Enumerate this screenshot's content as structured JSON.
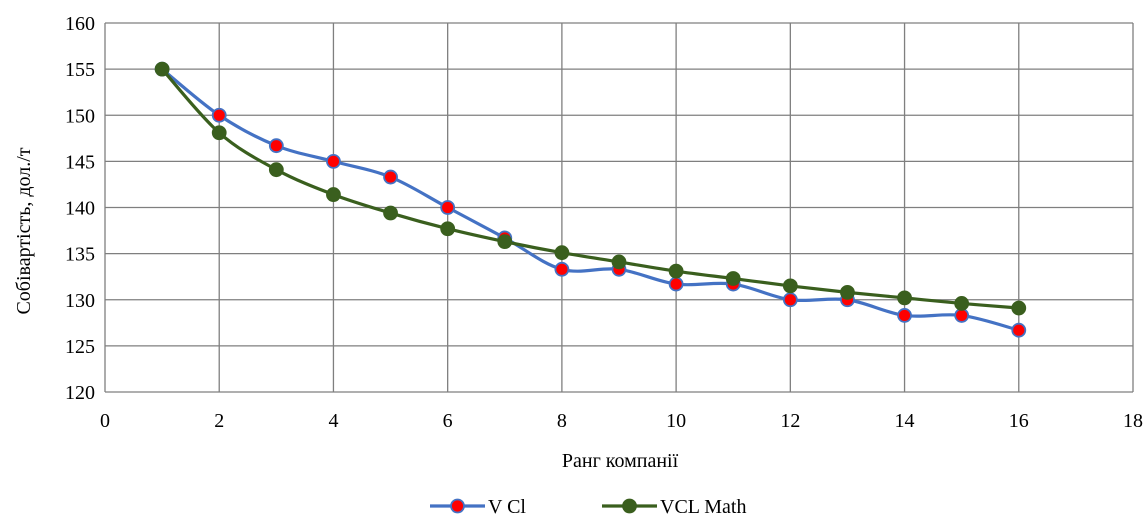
{
  "chart_data": {
    "type": "line",
    "title": "",
    "xlabel": "Ранг компанії",
    "ylabel": "Собівартість, дол./т",
    "xlim": [
      0,
      18
    ],
    "ylim": [
      120,
      160
    ],
    "xticks": [
      0,
      2,
      4,
      6,
      8,
      10,
      12,
      14,
      16,
      18
    ],
    "yticks": [
      120,
      125,
      130,
      135,
      140,
      145,
      150,
      155,
      160
    ],
    "grid": true,
    "legend_position": "bottom",
    "series": [
      {
        "name": "V Cl",
        "color": "#4472C4",
        "marker_color": "#FF0000",
        "smooth": true,
        "x": [
          1,
          2,
          3,
          4,
          5,
          6,
          7,
          8,
          9,
          10,
          11,
          12,
          13,
          14,
          15,
          16
        ],
        "y": [
          155.0,
          150.0,
          146.7,
          145.0,
          143.3,
          140.0,
          136.7,
          133.3,
          133.3,
          131.7,
          131.7,
          130.0,
          130.0,
          128.3,
          128.3,
          126.7
        ]
      },
      {
        "name": "VCL  Math",
        "color": "#3A5F1E",
        "marker_color": "#3A5F1E",
        "smooth": true,
        "x": [
          1,
          2,
          3,
          4,
          5,
          6,
          7,
          8,
          9,
          10,
          11,
          12,
          13,
          14,
          15,
          16
        ],
        "y": [
          155.0,
          148.1,
          144.1,
          141.4,
          139.4,
          137.7,
          136.3,
          135.1,
          134.1,
          133.1,
          132.3,
          131.5,
          130.8,
          130.2,
          129.6,
          129.1
        ]
      }
    ]
  }
}
